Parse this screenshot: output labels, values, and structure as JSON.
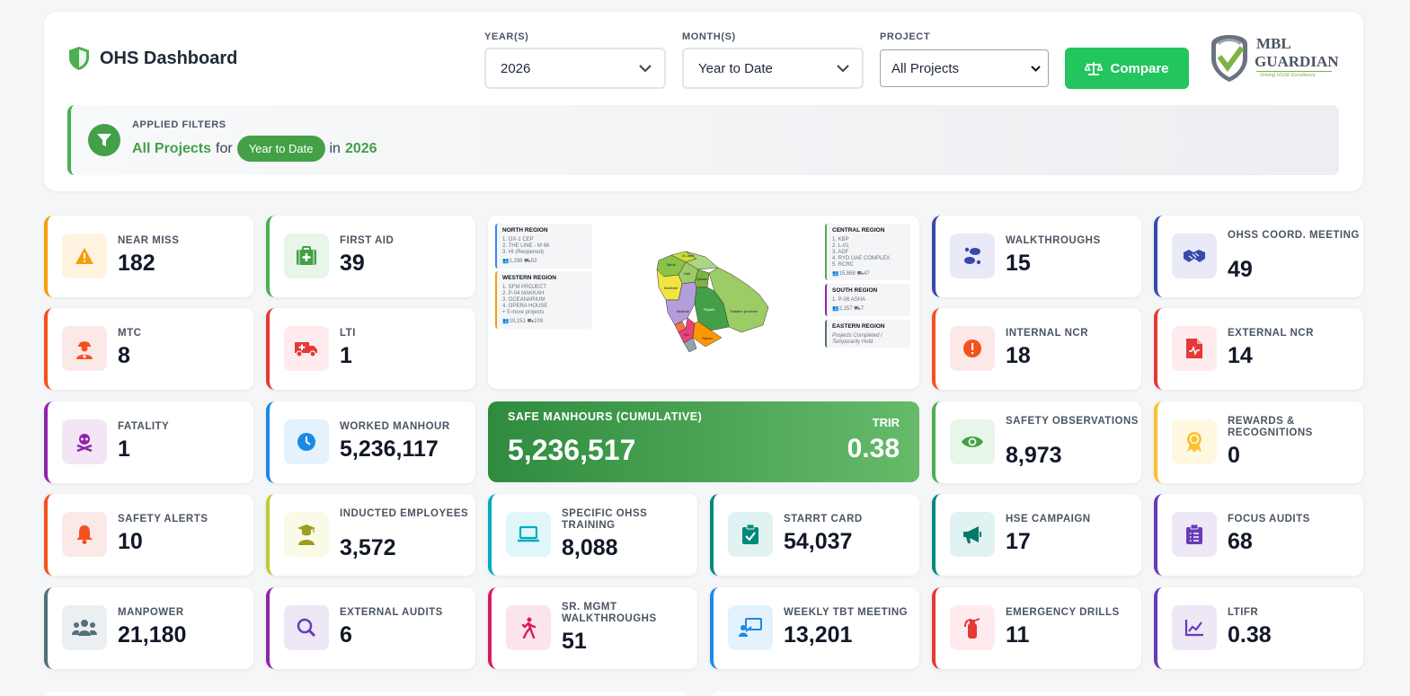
{
  "header": {
    "title": "OHS Dashboard",
    "year_label": "YEAR(S)",
    "year_value": "2026",
    "month_label": "MONTH(S)",
    "month_value": "Year to Date",
    "project_label": "PROJECT",
    "project_value": "All Projects",
    "compare_label": "Compare",
    "logo_line1": "MBL",
    "logo_line2": "GUARDIAN",
    "logo_tagline": "Driving HSSE Excellence"
  },
  "applied_filters": {
    "label": "APPLIED FILTERS",
    "project": "All Projects",
    "for_word": "for",
    "period": "Year to Date",
    "in_word": "in",
    "year": "2026"
  },
  "map": {
    "regions": {
      "north": {
        "name": "NORTH REGION",
        "items": [
          "1. OX-1 CEP",
          "2. THE LINE - M 66",
          "3. HI (Reopened)"
        ],
        "stats": "👥1,298  ⛟53"
      },
      "western": {
        "name": "WESTERN REGION",
        "items": [
          "1. SFM PROJECT",
          "2. P-04 MAKKAH",
          "3. OCEANARIUM",
          "4. OPERA HOUSE",
          "+ 5 more projects"
        ],
        "stats": "👥10,151  ⛟109"
      },
      "central": {
        "name": "CENTRAL REGION",
        "items": [
          "1. KBP",
          "2. L-01",
          "3. ADF",
          "4. RYD UAE COMPLEX",
          "5. RCRC"
        ],
        "stats": "👥15,868  ⛟47"
      },
      "south": {
        "name": "SOUTH REGION",
        "items": [
          "1. P-06 ASHA"
        ],
        "stats": "👥2,157  ⛟7"
      },
      "eastern": {
        "name": "EASTERN REGION",
        "items": [
          "Projects Completed /",
          "Temporarily Hold"
        ]
      }
    },
    "labels": {
      "eastern_province": "Eastern province",
      "riyadh": "Riyadh",
      "madinah": "Madinah",
      "makkah": "Makkah",
      "najran": "Najran",
      "qassim": "Qassim",
      "hail": "Hail",
      "jawf": "Al Jawf",
      "tabuk": "Tabuk",
      "asir": "Asir"
    }
  },
  "safe_manhours": {
    "label": "SAFE MANHOURS (CUMULATIVE)",
    "value": "5,236,517",
    "trir_label": "TRIR",
    "trir_value": "0.38"
  },
  "cards": {
    "near_miss": {
      "label": "NEAR MISS",
      "value": "182"
    },
    "first_aid": {
      "label": "FIRST AID",
      "value": "39"
    },
    "walkthroughs": {
      "label": "WALKTHROUGHS",
      "value": "15"
    },
    "ohss_coord": {
      "label": "OHSS COORD. MEETING",
      "value": "49"
    },
    "mtc": {
      "label": "MTC",
      "value": "8"
    },
    "lti": {
      "label": "LTI",
      "value": "1"
    },
    "internal_ncr": {
      "label": "INTERNAL NCR",
      "value": "18"
    },
    "external_ncr": {
      "label": "EXTERNAL NCR",
      "value": "14"
    },
    "fatality": {
      "label": "FATALITY",
      "value": "1"
    },
    "worked_manhour": {
      "label": "WORKED MANHOUR",
      "value": "5,236,117"
    },
    "safety_obs": {
      "label": "SAFETY OBSERVATIONS",
      "value": "8,973"
    },
    "rewards": {
      "label": "REWARDS & RECOGNITIONS",
      "value": "0"
    },
    "safety_alerts": {
      "label": "SAFETY ALERTS",
      "value": "10"
    },
    "inducted": {
      "label": "INDUCTED EMPLOYEES",
      "value": "3,572"
    },
    "specific_training": {
      "label": "SPECIFIC OHSS TRAINING",
      "value": "8,088"
    },
    "starrt": {
      "label": "STARRT CARD",
      "value": "54,037"
    },
    "hse_campaign": {
      "label": "HSE CAMPAIGN",
      "value": "17"
    },
    "focus_audits": {
      "label": "FOCUS AUDITS",
      "value": "68"
    },
    "manpower": {
      "label": "MANPOWER",
      "value": "21,180"
    },
    "external_audits": {
      "label": "EXTERNAL AUDITS",
      "value": "6"
    },
    "sr_mgmt": {
      "label": "SR. MGMT WALKTHROUGHS",
      "value": "51"
    },
    "weekly_tbt": {
      "label": "WEEKLY TBT MEETING",
      "value": "13,201"
    },
    "emergency_drills": {
      "label": "EMERGENCY DRILLS",
      "value": "11"
    },
    "ltifr": {
      "label": "LTIFR",
      "value": "0.38"
    }
  },
  "colors": {
    "accent_green": "#22c55e",
    "filter_green": "#43a047",
    "orange": "#f59e0b",
    "red_orange": "#f4511e",
    "red": "#e53935",
    "purple": "#8e24aa",
    "blue": "#1e88e5",
    "indigo": "#3949ab",
    "teal": "#00897b",
    "cyan": "#00acc1",
    "lime": "#c0ca33",
    "yellow": "#fbc02d",
    "pink": "#d81b60",
    "gray": "#546e7a",
    "violet": "#673ab7"
  }
}
